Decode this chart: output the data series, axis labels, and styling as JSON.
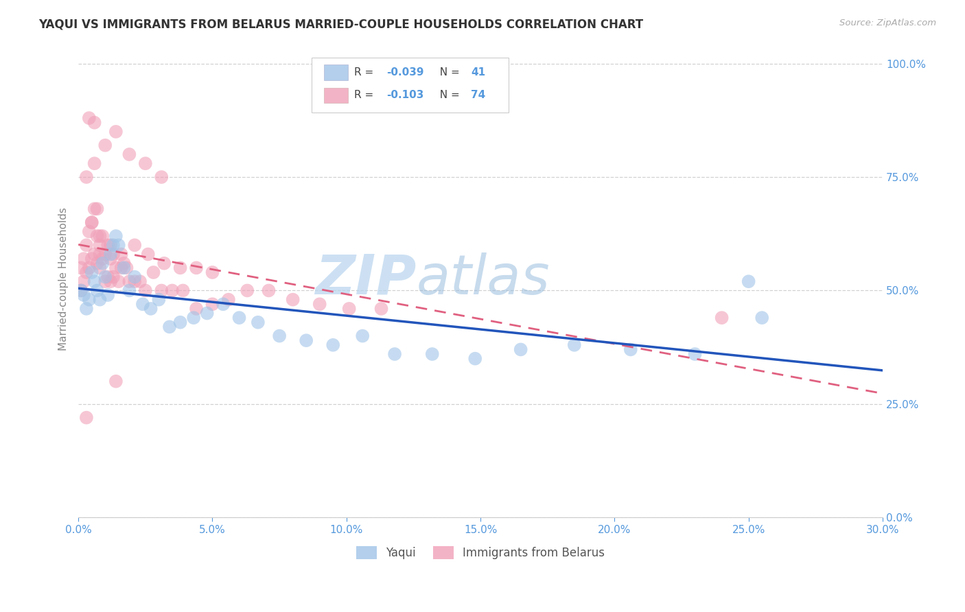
{
  "title": "YAQUI VS IMMIGRANTS FROM BELARUS MARRIED-COUPLE HOUSEHOLDS CORRELATION CHART",
  "source": "Source: ZipAtlas.com",
  "ylabel_label": "Married-couple Households",
  "legend_labels": [
    "Yaqui",
    "Immigrants from Belarus"
  ],
  "watermark_text": "ZIP",
  "watermark_text2": "atlas",
  "blue_color": "#a0c4e8",
  "pink_color": "#f0a0b8",
  "blue_line_color": "#2255bb",
  "pink_line_color": "#e06080",
  "background_color": "#ffffff",
  "grid_color": "#cccccc",
  "title_color": "#333333",
  "axis_tick_color": "#5599dd",
  "ylabel_color": "#888888",
  "xlim": [
    0.0,
    0.3
  ],
  "ylim": [
    0.0,
    1.05
  ],
  "xticks": [
    0.0,
    0.05,
    0.1,
    0.15,
    0.2,
    0.25,
    0.3
  ],
  "yticks": [
    0.0,
    0.25,
    0.5,
    0.75,
    1.0
  ],
  "yaqui_x": [
    0.001,
    0.002,
    0.003,
    0.004,
    0.005,
    0.006,
    0.007,
    0.008,
    0.009,
    0.01,
    0.011,
    0.012,
    0.013,
    0.014,
    0.015,
    0.017,
    0.019,
    0.021,
    0.024,
    0.027,
    0.03,
    0.034,
    0.038,
    0.043,
    0.048,
    0.054,
    0.06,
    0.067,
    0.075,
    0.085,
    0.095,
    0.106,
    0.118,
    0.132,
    0.148,
    0.165,
    0.185,
    0.206,
    0.23,
    0.255,
    0.25
  ],
  "yaqui_y": [
    0.5,
    0.49,
    0.46,
    0.48,
    0.54,
    0.52,
    0.5,
    0.48,
    0.56,
    0.53,
    0.49,
    0.58,
    0.6,
    0.62,
    0.6,
    0.55,
    0.5,
    0.53,
    0.47,
    0.46,
    0.48,
    0.42,
    0.43,
    0.44,
    0.45,
    0.47,
    0.44,
    0.43,
    0.4,
    0.39,
    0.38,
    0.4,
    0.36,
    0.36,
    0.35,
    0.37,
    0.38,
    0.37,
    0.36,
    0.44,
    0.52
  ],
  "belarus_x": [
    0.001,
    0.001,
    0.002,
    0.002,
    0.003,
    0.003,
    0.004,
    0.004,
    0.005,
    0.005,
    0.006,
    0.006,
    0.007,
    0.007,
    0.008,
    0.008,
    0.009,
    0.009,
    0.01,
    0.01,
    0.011,
    0.011,
    0.012,
    0.012,
    0.013,
    0.013,
    0.014,
    0.015,
    0.016,
    0.017,
    0.018,
    0.019,
    0.021,
    0.023,
    0.025,
    0.028,
    0.031,
    0.035,
    0.039,
    0.044,
    0.05,
    0.056,
    0.063,
    0.071,
    0.08,
    0.09,
    0.101,
    0.113,
    0.005,
    0.008,
    0.012,
    0.016,
    0.021,
    0.026,
    0.032,
    0.038,
    0.044,
    0.05,
    0.003,
    0.006,
    0.01,
    0.014,
    0.019,
    0.025,
    0.031,
    0.003,
    0.007,
    0.006,
    0.004,
    0.008,
    0.014,
    0.24
  ],
  "belarus_y": [
    0.5,
    0.55,
    0.52,
    0.57,
    0.54,
    0.6,
    0.55,
    0.63,
    0.57,
    0.65,
    0.58,
    0.68,
    0.56,
    0.62,
    0.55,
    0.6,
    0.57,
    0.62,
    0.52,
    0.58,
    0.53,
    0.6,
    0.52,
    0.57,
    0.53,
    0.58,
    0.55,
    0.52,
    0.55,
    0.56,
    0.55,
    0.52,
    0.52,
    0.52,
    0.5,
    0.54,
    0.5,
    0.5,
    0.5,
    0.46,
    0.47,
    0.48,
    0.5,
    0.5,
    0.48,
    0.47,
    0.46,
    0.46,
    0.65,
    0.62,
    0.6,
    0.58,
    0.6,
    0.58,
    0.56,
    0.55,
    0.55,
    0.54,
    0.75,
    0.78,
    0.82,
    0.85,
    0.8,
    0.78,
    0.75,
    0.22,
    0.68,
    0.87,
    0.88,
    0.58,
    0.3,
    0.44
  ]
}
